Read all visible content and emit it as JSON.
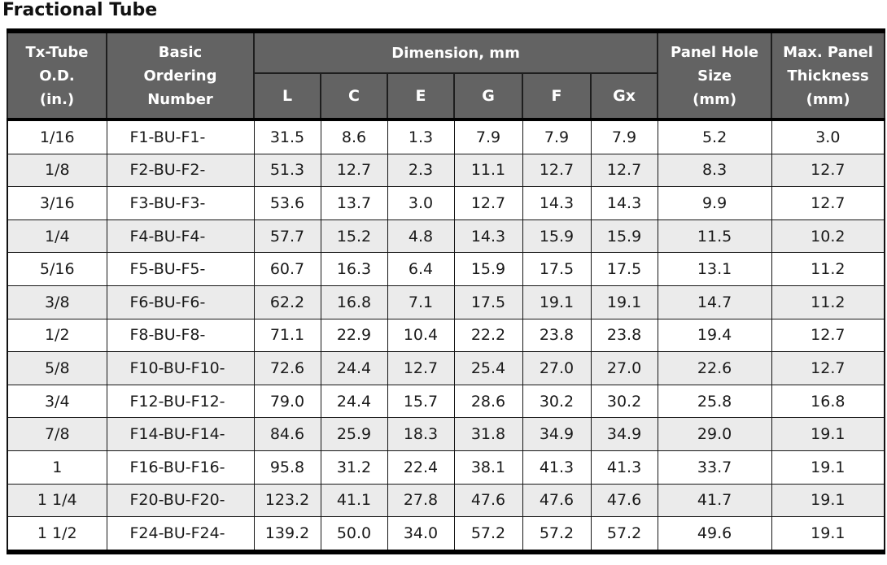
{
  "page_title": "Fractional Tube",
  "colors": {
    "header_bg": "#636363",
    "header_text": "#ffffff",
    "row_alt_bg": "#ebebeb",
    "border": "#111111",
    "text": "#1a1a1a"
  },
  "table": {
    "header": {
      "tube_od": "Tx-Tube\nO.D.\n(in.)",
      "ordering": "Basic\nOrdering\nNumber",
      "dimension_group": "Dimension, mm",
      "dimension_subcols": [
        "L",
        "C",
        "E",
        "G",
        "F",
        "Gx"
      ],
      "panel_hole": "Panel Hole\nSize\n(mm)",
      "max_thickness": "Max. Panel\nThickness\n(mm)"
    },
    "column_keys": [
      "tube-od",
      "ordering",
      "dim-l",
      "dim-c",
      "dim-e",
      "dim-g",
      "dim-f",
      "dim-gx",
      "panel-hole",
      "max-thickness"
    ],
    "rows": [
      [
        "1/16",
        "F1-BU-F1-",
        "31.5",
        "8.6",
        "1.3",
        "7.9",
        "7.9",
        "7.9",
        "5.2",
        "3.0"
      ],
      [
        "1/8",
        "F2-BU-F2-",
        "51.3",
        "12.7",
        "2.3",
        "11.1",
        "12.7",
        "12.7",
        "8.3",
        "12.7"
      ],
      [
        "3/16",
        "F3-BU-F3-",
        "53.6",
        "13.7",
        "3.0",
        "12.7",
        "14.3",
        "14.3",
        "9.9",
        "12.7"
      ],
      [
        "1/4",
        "F4-BU-F4-",
        "57.7",
        "15.2",
        "4.8",
        "14.3",
        "15.9",
        "15.9",
        "11.5",
        "10.2"
      ],
      [
        "5/16",
        "F5-BU-F5-",
        "60.7",
        "16.3",
        "6.4",
        "15.9",
        "17.5",
        "17.5",
        "13.1",
        "11.2"
      ],
      [
        "3/8",
        "F6-BU-F6-",
        "62.2",
        "16.8",
        "7.1",
        "17.5",
        "19.1",
        "19.1",
        "14.7",
        "11.2"
      ],
      [
        "1/2",
        "F8-BU-F8-",
        "71.1",
        "22.9",
        "10.4",
        "22.2",
        "23.8",
        "23.8",
        "19.4",
        "12.7"
      ],
      [
        "5/8",
        "F10-BU-F10-",
        "72.6",
        "24.4",
        "12.7",
        "25.4",
        "27.0",
        "27.0",
        "22.6",
        "12.7"
      ],
      [
        "3/4",
        "F12-BU-F12-",
        "79.0",
        "24.4",
        "15.7",
        "28.6",
        "30.2",
        "30.2",
        "25.8",
        "16.8"
      ],
      [
        "7/8",
        "F14-BU-F14-",
        "84.6",
        "25.9",
        "18.3",
        "31.8",
        "34.9",
        "34.9",
        "29.0",
        "19.1"
      ],
      [
        "1",
        "F16-BU-F16-",
        "95.8",
        "31.2",
        "22.4",
        "38.1",
        "41.3",
        "41.3",
        "33.7",
        "19.1"
      ],
      [
        "1 1/4",
        "F20-BU-F20-",
        "123.2",
        "41.1",
        "27.8",
        "47.6",
        "47.6",
        "47.6",
        "41.7",
        "19.1"
      ],
      [
        "1 1/2",
        "F24-BU-F24-",
        "139.2",
        "50.0",
        "34.0",
        "57.2",
        "57.2",
        "57.2",
        "49.6",
        "19.1"
      ]
    ]
  }
}
